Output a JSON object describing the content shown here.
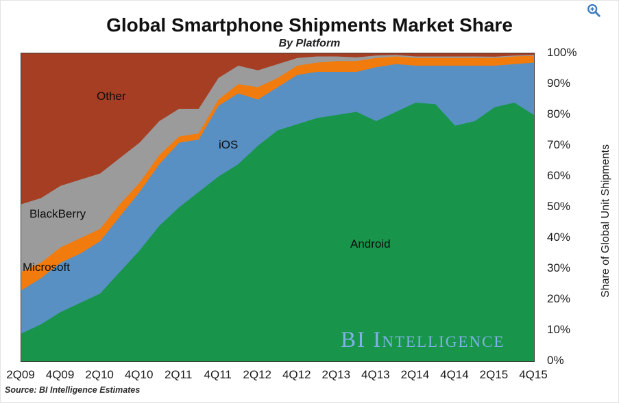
{
  "page": {
    "title": "Global Smartphone Shipments Market Share",
    "subtitle": "By Platform",
    "source": "Source: BI Intelligence Estimates",
    "watermark": "BI Intelligence",
    "zoom_icon_color": "#3D7DC0"
  },
  "chart_data": {
    "type": "area",
    "stacked": true,
    "title": "Global Smartphone Shipments Market Share",
    "subtitle": "By Platform",
    "ylabel": "Share of Global Unit Shipments",
    "ylim": [
      0,
      100
    ],
    "grid": false,
    "legend_position": "labels-inside-areas",
    "y_tick_labels": [
      "0%",
      "10%",
      "20%",
      "30%",
      "40%",
      "50%",
      "60%",
      "70%",
      "80%",
      "90%",
      "100%"
    ],
    "x": [
      "2Q09",
      "3Q09",
      "4Q09",
      "1Q10",
      "2Q10",
      "3Q10",
      "4Q10",
      "1Q11",
      "2Q11",
      "3Q11",
      "4Q11",
      "1Q12",
      "2Q12",
      "3Q12",
      "4Q12",
      "1Q13",
      "2Q13",
      "3Q13",
      "4Q13",
      "1Q14",
      "2Q14",
      "3Q14",
      "4Q14",
      "1Q15",
      "2Q15",
      "3Q15",
      "4Q15"
    ],
    "x_tick_labels": [
      "2Q09",
      "4Q09",
      "2Q10",
      "4Q10",
      "2Q11",
      "4Q11",
      "2Q12",
      "4Q12",
      "2Q13",
      "4Q13",
      "2Q14",
      "4Q14",
      "2Q15",
      "4Q15"
    ],
    "series": [
      {
        "name": "Android",
        "color": "#18954B",
        "values": [
          9,
          12,
          16,
          19,
          22,
          29,
          36,
          44,
          50,
          55,
          60,
          64,
          70,
          75,
          77,
          79,
          80,
          81,
          78,
          81,
          84,
          83.5,
          76.5,
          78,
          82.5,
          84,
          80
        ]
      },
      {
        "name": "iOS",
        "color": "#5890C4",
        "values": [
          14,
          15,
          16,
          16,
          17,
          18,
          19,
          20,
          21,
          17,
          23,
          23,
          15,
          14,
          16,
          15,
          14,
          13,
          17.5,
          15.5,
          12,
          12.5,
          19.5,
          18,
          13.5,
          12.5,
          17
        ]
      },
      {
        "name": "Microsoft",
        "color": "#F27B0D",
        "values": [
          6,
          5,
          5,
          5,
          4,
          4,
          3,
          3,
          2,
          2,
          2,
          3,
          4,
          3,
          3,
          3,
          3.5,
          3.5,
          3,
          2.5,
          2.5,
          2.5,
          2.5,
          2.5,
          2.5,
          2.5,
          2.2
        ]
      },
      {
        "name": "BlackBerry",
        "color": "#9B9B9B",
        "values": [
          22,
          21,
          20,
          19,
          18,
          15,
          13,
          11,
          9,
          8,
          7,
          6,
          5.5,
          4.5,
          2.5,
          2,
          1.5,
          1.2,
          0.8,
          0.5,
          0.5,
          0.5,
          0.5,
          0.5,
          0.4,
          0.3,
          0.3
        ]
      },
      {
        "name": "Other",
        "color": "#A53E22",
        "values": [
          49,
          47,
          43,
          41,
          39,
          34,
          29,
          22,
          18,
          18,
          8,
          4,
          5.5,
          3.5,
          1.5,
          1,
          1,
          1.3,
          0.7,
          0.5,
          1,
          1,
          1,
          1,
          1.1,
          0.7,
          0.5
        ]
      }
    ]
  }
}
